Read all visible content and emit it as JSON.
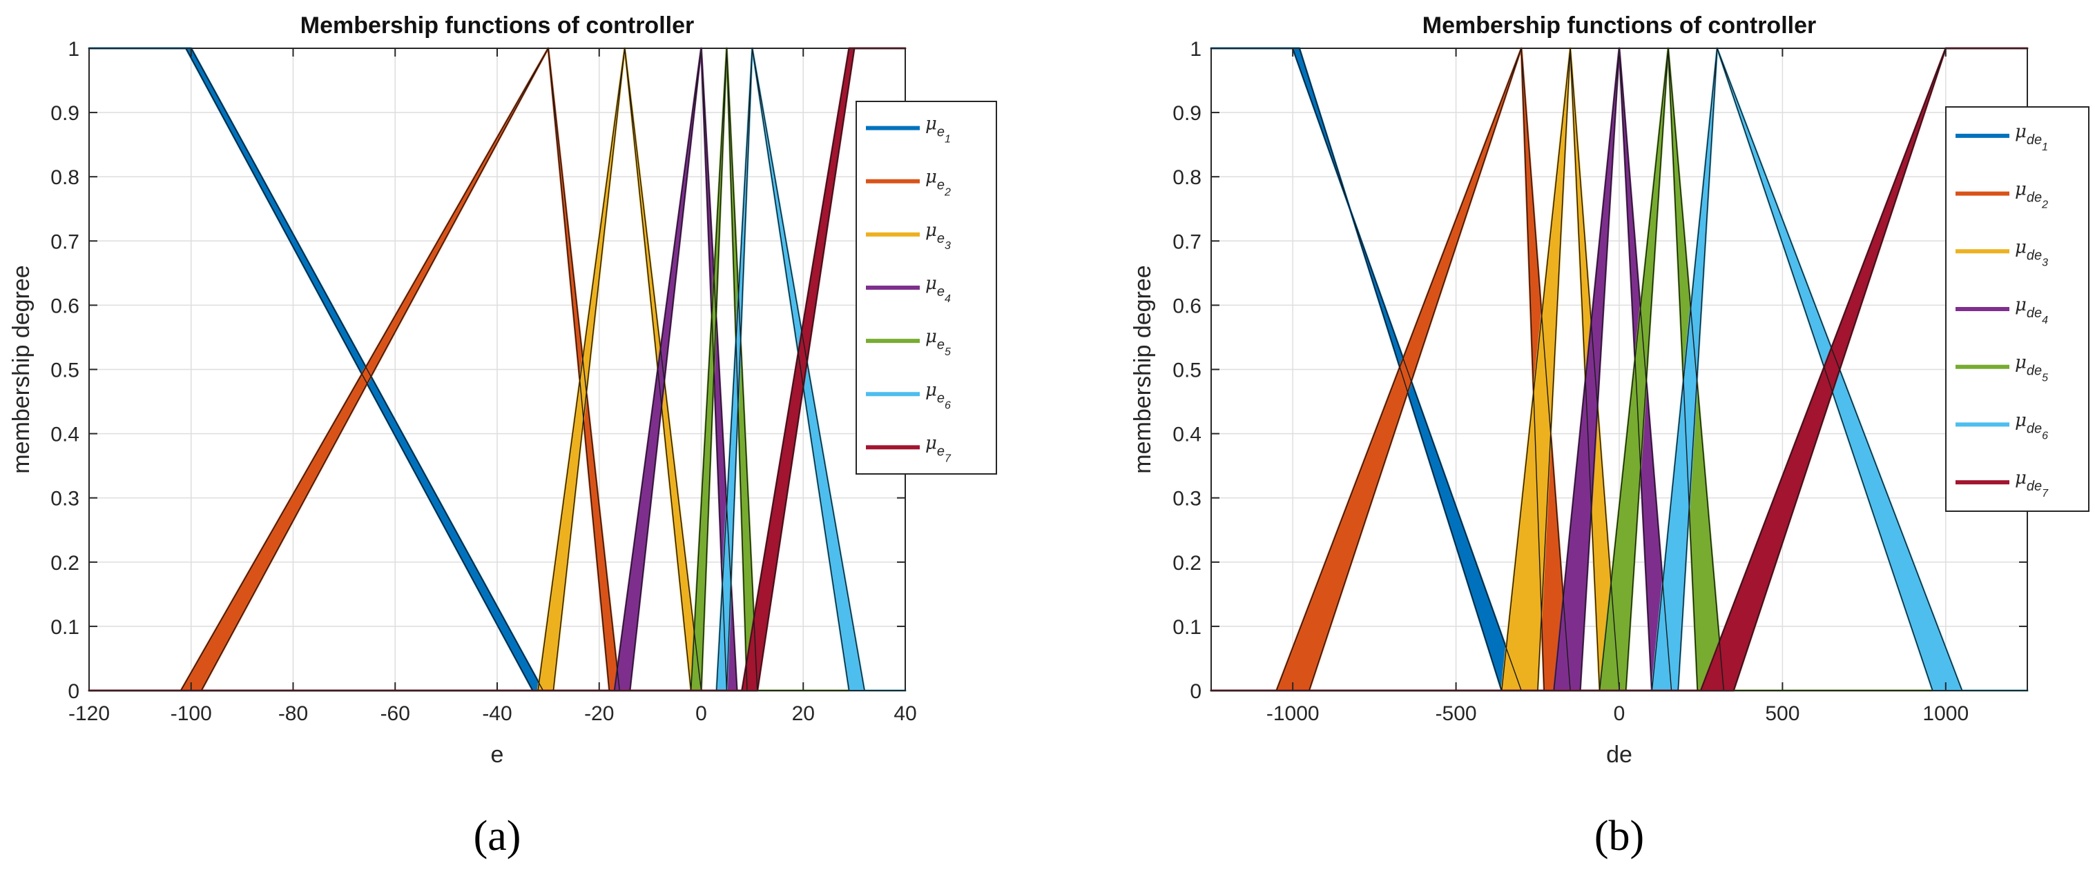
{
  "chart_data": [
    {
      "type": "line",
      "panel_label": "(a)",
      "title": "Membership functions of controller",
      "xlabel": "e",
      "ylabel": "membership degree",
      "xlim": [
        -120,
        40
      ],
      "ylim": [
        0,
        1
      ],
      "xticks": [
        -120,
        -100,
        -80,
        -60,
        -40,
        -20,
        0,
        20,
        40
      ],
      "xtick_labels": [
        "-120",
        "-100",
        "-80",
        "-60",
        "-40",
        "-20",
        "0",
        "20",
        "40"
      ],
      "yticks": [
        0,
        0.1,
        0.2,
        0.3,
        0.4,
        0.5,
        0.6,
        0.7,
        0.8,
        0.9,
        1
      ],
      "ytick_labels": [
        "0",
        "0.1",
        "0.2",
        "0.3",
        "0.4",
        "0.5",
        "0.6",
        "0.7",
        "0.8",
        "0.9",
        "1"
      ],
      "grid": true,
      "legend_position": "top-right",
      "series": [
        {
          "name": "μe1",
          "mu": "μ",
          "sub": "e",
          "idx": "1",
          "color": "#0072BD",
          "upper": [
            [
              -120,
              1
            ],
            [
              -100,
              1
            ],
            [
              -31,
              0
            ],
            [
              40,
              0
            ]
          ],
          "lower": [
            [
              -120,
              1
            ],
            [
              -101,
              1
            ],
            [
              -33,
              0
            ],
            [
              40,
              0
            ]
          ]
        },
        {
          "name": "μe2",
          "mu": "μ",
          "sub": "e",
          "idx": "2",
          "color": "#D95319",
          "upper": [
            [
              -120,
              0
            ],
            [
              -102,
              0
            ],
            [
              -30,
              1
            ],
            [
              -16,
              0
            ],
            [
              40,
              0
            ]
          ],
          "lower": [
            [
              -120,
              0
            ],
            [
              -98,
              0
            ],
            [
              -30,
              1
            ],
            [
              -18,
              0
            ],
            [
              40,
              0
            ]
          ]
        },
        {
          "name": "μe3",
          "mu": "μ",
          "sub": "e",
          "idx": "3",
          "color": "#EDB120",
          "upper": [
            [
              -120,
              0
            ],
            [
              -32,
              0
            ],
            [
              -15,
              1
            ],
            [
              0,
              0
            ],
            [
              40,
              0
            ]
          ],
          "lower": [
            [
              -120,
              0
            ],
            [
              -29,
              0
            ],
            [
              -15,
              1
            ],
            [
              -2,
              0
            ],
            [
              40,
              0
            ]
          ]
        },
        {
          "name": "μe4",
          "mu": "μ",
          "sub": "e",
          "idx": "4",
          "color": "#7E2F8E",
          "upper": [
            [
              -120,
              0
            ],
            [
              -17,
              0
            ],
            [
              0,
              1
            ],
            [
              7,
              0
            ],
            [
              40,
              0
            ]
          ],
          "lower": [
            [
              -120,
              0
            ],
            [
              -14,
              0
            ],
            [
              0,
              1
            ],
            [
              5,
              0
            ],
            [
              40,
              0
            ]
          ]
        },
        {
          "name": "μe5",
          "mu": "μ",
          "sub": "e",
          "idx": "5",
          "color": "#77AC30",
          "upper": [
            [
              -120,
              0
            ],
            [
              -2,
              0
            ],
            [
              5,
              1
            ],
            [
              11,
              0
            ],
            [
              40,
              0
            ]
          ],
          "lower": [
            [
              -120,
              0
            ],
            [
              0,
              0
            ],
            [
              5,
              1
            ],
            [
              9,
              0
            ],
            [
              40,
              0
            ]
          ]
        },
        {
          "name": "μe6",
          "mu": "μ",
          "sub": "e",
          "idx": "6",
          "color": "#4DBEEE",
          "upper": [
            [
              -120,
              0
            ],
            [
              3,
              0
            ],
            [
              10,
              1
            ],
            [
              32,
              0
            ],
            [
              40,
              0
            ]
          ],
          "lower": [
            [
              -120,
              0
            ],
            [
              5,
              0
            ],
            [
              10,
              1
            ],
            [
              29,
              0
            ],
            [
              40,
              0
            ]
          ]
        },
        {
          "name": "μe7",
          "mu": "μ",
          "sub": "e",
          "idx": "7",
          "color": "#A2142F",
          "upper": [
            [
              -120,
              0
            ],
            [
              8,
              0
            ],
            [
              29,
              1
            ],
            [
              40,
              1
            ]
          ],
          "lower": [
            [
              -120,
              0
            ],
            [
              11,
              0
            ],
            [
              30,
              1
            ],
            [
              40,
              1
            ]
          ]
        }
      ]
    },
    {
      "type": "line",
      "panel_label": "(b)",
      "title": "Membership functions of controller",
      "xlabel": "de",
      "ylabel": "membership degree",
      "xlim": [
        -1250,
        1250
      ],
      "ylim": [
        0,
        1
      ],
      "xticks": [
        -1000,
        -500,
        0,
        500,
        1000
      ],
      "xtick_labels": [
        "-1000",
        "-500",
        "0",
        "500",
        "1000"
      ],
      "yticks": [
        0,
        0.1,
        0.2,
        0.3,
        0.4,
        0.5,
        0.6,
        0.7,
        0.8,
        0.9,
        1
      ],
      "ytick_labels": [
        "0",
        "0.1",
        "0.2",
        "0.3",
        "0.4",
        "0.5",
        "0.6",
        "0.7",
        "0.8",
        "0.9",
        "1"
      ],
      "grid": true,
      "legend_position": "top-right",
      "series": [
        {
          "name": "μde1",
          "mu": "μ",
          "sub": "de",
          "idx": "1",
          "color": "#0072BD",
          "upper": [
            [
              -1250,
              1
            ],
            [
              -1000,
              1
            ],
            [
              -300,
              0
            ],
            [
              1250,
              0
            ]
          ],
          "lower": [
            [
              -1250,
              1
            ],
            [
              -980,
              1
            ],
            [
              -360,
              0
            ],
            [
              1250,
              0
            ]
          ]
        },
        {
          "name": "μde2",
          "mu": "μ",
          "sub": "de",
          "idx": "2",
          "color": "#D95319",
          "upper": [
            [
              -1250,
              0
            ],
            [
              -1050,
              0
            ],
            [
              -300,
              1
            ],
            [
              -150,
              0
            ],
            [
              1250,
              0
            ]
          ],
          "lower": [
            [
              -1250,
              0
            ],
            [
              -950,
              0
            ],
            [
              -300,
              1
            ],
            [
              -230,
              0
            ],
            [
              1250,
              0
            ]
          ]
        },
        {
          "name": "μde3",
          "mu": "μ",
          "sub": "de",
          "idx": "3",
          "color": "#EDB120",
          "upper": [
            [
              -1250,
              0
            ],
            [
              -360,
              0
            ],
            [
              -150,
              1
            ],
            [
              0,
              0
            ],
            [
              1250,
              0
            ]
          ],
          "lower": [
            [
              -1250,
              0
            ],
            [
              -250,
              0
            ],
            [
              -150,
              1
            ],
            [
              -60,
              0
            ],
            [
              1250,
              0
            ]
          ]
        },
        {
          "name": "μde4",
          "mu": "μ",
          "sub": "de",
          "idx": "4",
          "color": "#7E2F8E",
          "upper": [
            [
              -1250,
              0
            ],
            [
              -200,
              0
            ],
            [
              0,
              1
            ],
            [
              160,
              0
            ],
            [
              1250,
              0
            ]
          ],
          "lower": [
            [
              -1250,
              0
            ],
            [
              -120,
              0
            ],
            [
              0,
              1
            ],
            [
              100,
              0
            ],
            [
              1250,
              0
            ]
          ]
        },
        {
          "name": "μde5",
          "mu": "μ",
          "sub": "de",
          "idx": "5",
          "color": "#77AC30",
          "upper": [
            [
              -1250,
              0
            ],
            [
              -60,
              0
            ],
            [
              150,
              1
            ],
            [
              320,
              0
            ],
            [
              1250,
              0
            ]
          ],
          "lower": [
            [
              -1250,
              0
            ],
            [
              20,
              0
            ],
            [
              150,
              1
            ],
            [
              240,
              0
            ],
            [
              1250,
              0
            ]
          ]
        },
        {
          "name": "μde6",
          "mu": "μ",
          "sub": "de",
          "idx": "6",
          "color": "#4DBEEE",
          "upper": [
            [
              -1250,
              0
            ],
            [
              100,
              0
            ],
            [
              300,
              1
            ],
            [
              1050,
              0
            ],
            [
              1250,
              0
            ]
          ],
          "lower": [
            [
              -1250,
              0
            ],
            [
              180,
              0
            ],
            [
              300,
              1
            ],
            [
              960,
              0
            ],
            [
              1250,
              0
            ]
          ]
        },
        {
          "name": "μde7",
          "mu": "μ",
          "sub": "de",
          "idx": "7",
          "color": "#A2142F",
          "upper": [
            [
              -1250,
              0
            ],
            [
              250,
              0
            ],
            [
              1000,
              1
            ],
            [
              1250,
              1
            ]
          ],
          "lower": [
            [
              -1250,
              0
            ],
            [
              350,
              0
            ],
            [
              1000,
              1
            ],
            [
              1250,
              1
            ]
          ]
        }
      ]
    }
  ]
}
